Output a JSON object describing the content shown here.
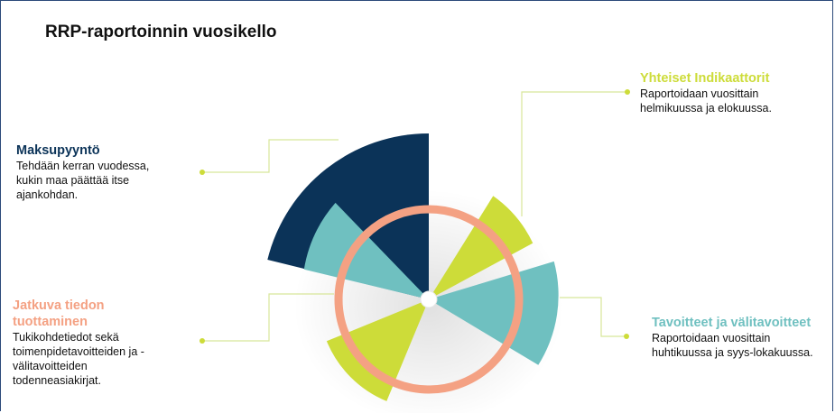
{
  "title": "RRP-raportoinnin vuosikello",
  "blocks": {
    "maksupyynto": {
      "heading": "Maksupyyntö",
      "text": "Tehdään kerran vuodessa,\nkukin maa päättää itse\najankohdan."
    },
    "jatkuva": {
      "heading": "Jatkuva tiedon tuottaminen",
      "text": "Tukikohdetiedot sekä\ntoimenpidetavoitteiden ja -\nvälitavoitteiden\ntodenneasiakirjat."
    },
    "yhteiset": {
      "heading": "Yhteiset Indikaattorit",
      "text": "Raportoidaan vuosittain\nhelmikuussa ja elokuussa."
    },
    "tavoitteet": {
      "heading": "Tavoitteet ja välitavoitteet",
      "text": "Raportoidaan vuosittain\nhuhtikuussa ja syys-lokakuussa."
    }
  },
  "colors": {
    "navy": "#0b3358",
    "teal": "#6fc0c0",
    "lime": "#cddc39",
    "salmon": "#f4a183",
    "connector": "#d8e69a"
  }
}
